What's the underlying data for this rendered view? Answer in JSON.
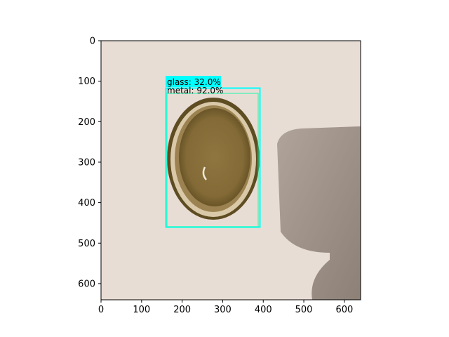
{
  "image_axes": {
    "xlim": [
      0,
      640
    ],
    "ylim": [
      640,
      0
    ],
    "x_ticks": [
      "0",
      "100",
      "200",
      "300",
      "400",
      "500",
      "600"
    ],
    "y_ticks": [
      "0",
      "100",
      "200",
      "300",
      "400",
      "500",
      "600"
    ]
  },
  "detections": [
    {
      "label": "glass: 32.0%",
      "class": "glass",
      "score": 32.0,
      "color": "#00ffff"
    },
    {
      "label": "metal: 92.0%",
      "class": "metal",
      "score": 92.0,
      "color": "#00ffaa"
    }
  ],
  "photo": {
    "background": "#e6dcd4",
    "lid_rim_color": "#6b5a2e",
    "lid_inner_color": "#8a6f3c",
    "shadow_color": "#8d8278"
  }
}
